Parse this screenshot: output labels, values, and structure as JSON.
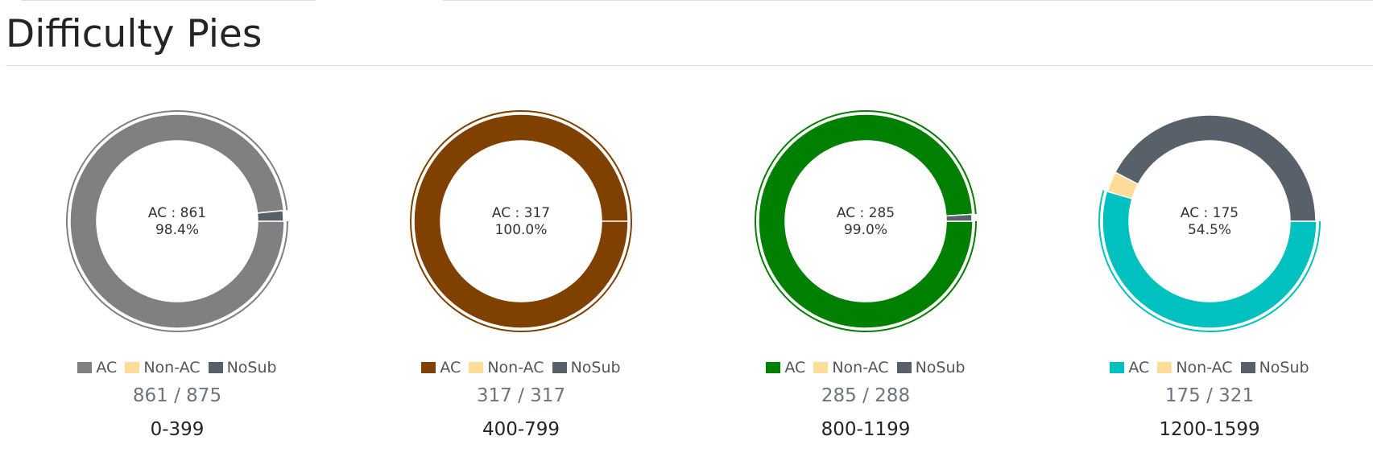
{
  "page": {
    "title": "Difficulty Pies"
  },
  "legend": {
    "ac": "AC",
    "non_ac": "Non-AC",
    "nosub": "NoSub"
  },
  "colors": {
    "non_ac": "#ffdd99",
    "nosub": "#58616a"
  },
  "chart_data": [
    {
      "type": "pie",
      "title": "0-399",
      "categories": [
        "AC",
        "Non-AC",
        "NoSub"
      ],
      "values": [
        861,
        0,
        14
      ],
      "colors": [
        "#808080",
        "#ffdd99",
        "#58616a"
      ],
      "center_lines": [
        "AC : 861",
        "98.4%"
      ],
      "counts_label": "861 / 875"
    },
    {
      "type": "pie",
      "title": "400-799",
      "categories": [
        "AC",
        "Non-AC",
        "NoSub"
      ],
      "values": [
        317,
        0,
        0
      ],
      "colors": [
        "#804000",
        "#ffdd99",
        "#58616a"
      ],
      "center_lines": [
        "AC : 317",
        "100.0%"
      ],
      "counts_label": "317 / 317"
    },
    {
      "type": "pie",
      "title": "800-1199",
      "categories": [
        "AC",
        "Non-AC",
        "NoSub"
      ],
      "values": [
        285,
        0,
        3
      ],
      "colors": [
        "#008000",
        "#ffdd99",
        "#58616a"
      ],
      "center_lines": [
        "AC : 285",
        "99.0%"
      ],
      "counts_label": "285 / 288"
    },
    {
      "type": "pie",
      "title": "1200-1599",
      "categories": [
        "AC",
        "Non-AC",
        "NoSub"
      ],
      "values": [
        175,
        10,
        136
      ],
      "colors": [
        "#00c0c0",
        "#ffdd99",
        "#58616a"
      ],
      "center_lines": [
        "AC : 175",
        "54.5%"
      ],
      "counts_label": "175 / 321"
    }
  ]
}
